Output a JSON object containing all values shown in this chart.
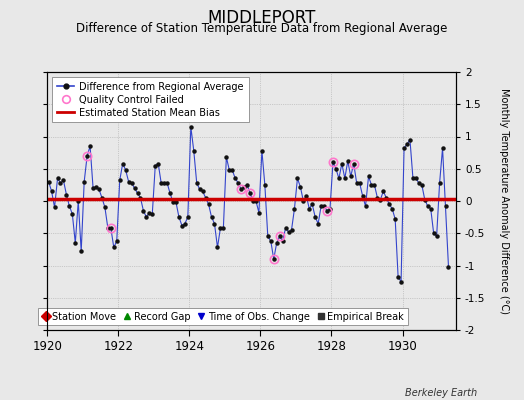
{
  "title": "MIDDLEPORT",
  "subtitle": "Difference of Station Temperature Data from Regional Average",
  "ylabel": "Monthly Temperature Anomaly Difference (°C)",
  "bias": 0.03,
  "ylim": [
    -2,
    2
  ],
  "xlim": [
    1920.0,
    1931.5
  ],
  "xticks": [
    1920,
    1922,
    1924,
    1926,
    1928,
    1930
  ],
  "yticks": [
    -2,
    -1.5,
    -1,
    -0.5,
    0,
    0.5,
    1,
    1.5,
    2
  ],
  "background_color": "#e8e8e8",
  "line_color": "#3344cc",
  "bias_color": "#cc0000",
  "time_series": [
    [
      1920.042,
      0.3
    ],
    [
      1920.125,
      0.15
    ],
    [
      1920.208,
      -0.1
    ],
    [
      1920.292,
      0.35
    ],
    [
      1920.375,
      0.28
    ],
    [
      1920.458,
      0.32
    ],
    [
      1920.542,
      0.1
    ],
    [
      1920.625,
      -0.08
    ],
    [
      1920.708,
      -0.2
    ],
    [
      1920.792,
      -0.65
    ],
    [
      1920.875,
      0.0
    ],
    [
      1920.958,
      -0.78
    ],
    [
      1921.042,
      0.3
    ],
    [
      1921.125,
      0.7
    ],
    [
      1921.208,
      0.85
    ],
    [
      1921.292,
      0.2
    ],
    [
      1921.375,
      0.22
    ],
    [
      1921.458,
      0.18
    ],
    [
      1921.542,
      0.05
    ],
    [
      1921.625,
      -0.1
    ],
    [
      1921.708,
      -0.42
    ],
    [
      1921.792,
      -0.42
    ],
    [
      1921.875,
      -0.72
    ],
    [
      1921.958,
      -0.62
    ],
    [
      1922.042,
      0.32
    ],
    [
      1922.125,
      0.58
    ],
    [
      1922.208,
      0.48
    ],
    [
      1922.292,
      0.3
    ],
    [
      1922.375,
      0.28
    ],
    [
      1922.458,
      0.2
    ],
    [
      1922.542,
      0.12
    ],
    [
      1922.625,
      0.05
    ],
    [
      1922.708,
      -0.15
    ],
    [
      1922.792,
      -0.25
    ],
    [
      1922.875,
      -0.18
    ],
    [
      1922.958,
      -0.2
    ],
    [
      1923.042,
      0.55
    ],
    [
      1923.125,
      0.58
    ],
    [
      1923.208,
      0.28
    ],
    [
      1923.292,
      0.28
    ],
    [
      1923.375,
      0.28
    ],
    [
      1923.458,
      0.12
    ],
    [
      1923.542,
      -0.02
    ],
    [
      1923.625,
      -0.02
    ],
    [
      1923.708,
      -0.25
    ],
    [
      1923.792,
      -0.38
    ],
    [
      1923.875,
      -0.35
    ],
    [
      1923.958,
      -0.25
    ],
    [
      1924.042,
      1.15
    ],
    [
      1924.125,
      0.78
    ],
    [
      1924.208,
      0.28
    ],
    [
      1924.292,
      0.18
    ],
    [
      1924.375,
      0.15
    ],
    [
      1924.458,
      0.05
    ],
    [
      1924.542,
      -0.05
    ],
    [
      1924.625,
      -0.25
    ],
    [
      1924.708,
      -0.35
    ],
    [
      1924.792,
      -0.72
    ],
    [
      1924.875,
      -0.42
    ],
    [
      1924.958,
      -0.42
    ],
    [
      1925.042,
      0.68
    ],
    [
      1925.125,
      0.48
    ],
    [
      1925.208,
      0.48
    ],
    [
      1925.292,
      0.35
    ],
    [
      1925.375,
      0.28
    ],
    [
      1925.458,
      0.18
    ],
    [
      1925.542,
      0.22
    ],
    [
      1925.625,
      0.25
    ],
    [
      1925.708,
      0.12
    ],
    [
      1925.792,
      0.0
    ],
    [
      1925.875,
      0.0
    ],
    [
      1925.958,
      -0.18
    ],
    [
      1926.042,
      0.78
    ],
    [
      1926.125,
      0.25
    ],
    [
      1926.208,
      -0.55
    ],
    [
      1926.292,
      -0.62
    ],
    [
      1926.375,
      -0.9
    ],
    [
      1926.458,
      -0.65
    ],
    [
      1926.542,
      -0.55
    ],
    [
      1926.625,
      -0.62
    ],
    [
      1926.708,
      -0.42
    ],
    [
      1926.792,
      -0.48
    ],
    [
      1926.875,
      -0.45
    ],
    [
      1926.958,
      -0.12
    ],
    [
      1927.042,
      0.35
    ],
    [
      1927.125,
      0.22
    ],
    [
      1927.208,
      0.0
    ],
    [
      1927.292,
      0.08
    ],
    [
      1927.375,
      -0.12
    ],
    [
      1927.458,
      -0.05
    ],
    [
      1927.542,
      -0.25
    ],
    [
      1927.625,
      -0.35
    ],
    [
      1927.708,
      -0.08
    ],
    [
      1927.792,
      -0.08
    ],
    [
      1927.875,
      -0.15
    ],
    [
      1927.958,
      -0.12
    ],
    [
      1928.042,
      0.6
    ],
    [
      1928.125,
      0.5
    ],
    [
      1928.208,
      0.35
    ],
    [
      1928.292,
      0.58
    ],
    [
      1928.375,
      0.35
    ],
    [
      1928.458,
      0.62
    ],
    [
      1928.542,
      0.38
    ],
    [
      1928.625,
      0.58
    ],
    [
      1928.708,
      0.28
    ],
    [
      1928.792,
      0.28
    ],
    [
      1928.875,
      0.08
    ],
    [
      1928.958,
      -0.08
    ],
    [
      1929.042,
      0.38
    ],
    [
      1929.125,
      0.25
    ],
    [
      1929.208,
      0.25
    ],
    [
      1929.292,
      0.05
    ],
    [
      1929.375,
      0.02
    ],
    [
      1929.458,
      0.15
    ],
    [
      1929.542,
      0.05
    ],
    [
      1929.625,
      -0.05
    ],
    [
      1929.708,
      -0.12
    ],
    [
      1929.792,
      -0.28
    ],
    [
      1929.875,
      -1.18
    ],
    [
      1929.958,
      -1.25
    ],
    [
      1930.042,
      0.82
    ],
    [
      1930.125,
      0.88
    ],
    [
      1930.208,
      0.95
    ],
    [
      1930.292,
      0.35
    ],
    [
      1930.375,
      0.35
    ],
    [
      1930.458,
      0.28
    ],
    [
      1930.542,
      0.25
    ],
    [
      1930.625,
      0.02
    ],
    [
      1930.708,
      -0.08
    ],
    [
      1930.792,
      -0.12
    ],
    [
      1930.875,
      -0.5
    ],
    [
      1930.958,
      -0.55
    ],
    [
      1931.042,
      0.28
    ],
    [
      1931.125,
      0.82
    ],
    [
      1931.208,
      -0.08
    ],
    [
      1931.292,
      -1.02
    ]
  ],
  "qc_failed": [
    [
      1921.125,
      0.7
    ],
    [
      1921.792,
      -0.42
    ],
    [
      1925.458,
      0.18
    ],
    [
      1925.708,
      0.12
    ],
    [
      1926.375,
      -0.9
    ],
    [
      1926.542,
      -0.55
    ],
    [
      1927.875,
      -0.15
    ],
    [
      1928.042,
      0.6
    ],
    [
      1928.625,
      0.58
    ]
  ],
  "legend1_labels": [
    "Difference from Regional Average",
    "Quality Control Failed",
    "Estimated Station Mean Bias"
  ],
  "legend2_labels": [
    "Station Move",
    "Record Gap",
    "Time of Obs. Change",
    "Empirical Break"
  ],
  "legend2_colors": [
    "#cc0000",
    "#008800",
    "#0000cc",
    "#333333"
  ],
  "legend2_markers": [
    "D",
    "^",
    "v",
    "s"
  ],
  "berkeley_earth": "Berkeley Earth"
}
